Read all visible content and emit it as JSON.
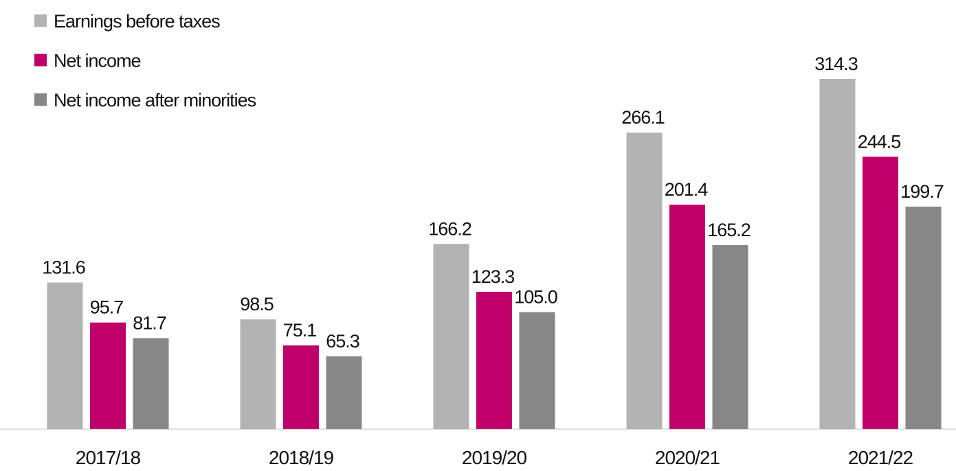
{
  "chart_data": {
    "type": "bar",
    "categories": [
      "2017/18",
      "2018/19",
      "2019/20",
      "2020/21",
      "2021/22"
    ],
    "series": [
      {
        "name": "Earnings before taxes",
        "color": "#b3b3b3",
        "values": [
          131.6,
          98.5,
          166.2,
          266.1,
          314.3
        ],
        "value_labels": [
          "131.6",
          "98.5",
          "166.2",
          "266.1",
          "314.3"
        ]
      },
      {
        "name": "Net income",
        "color": "#c0006a",
        "values": [
          95.7,
          75.1,
          123.3,
          201.4,
          244.5
        ],
        "value_labels": [
          "95.7",
          "75.1",
          "123.3",
          "201.4",
          "244.5"
        ]
      },
      {
        "name": "Net income after minorities",
        "color": "#878787",
        "values": [
          81.7,
          65.3,
          105.0,
          165.2,
          199.7
        ],
        "value_labels": [
          "81.7",
          "65.3",
          "105.0",
          "165.2",
          "199.7"
        ]
      }
    ],
    "legend": "top-left"
  }
}
